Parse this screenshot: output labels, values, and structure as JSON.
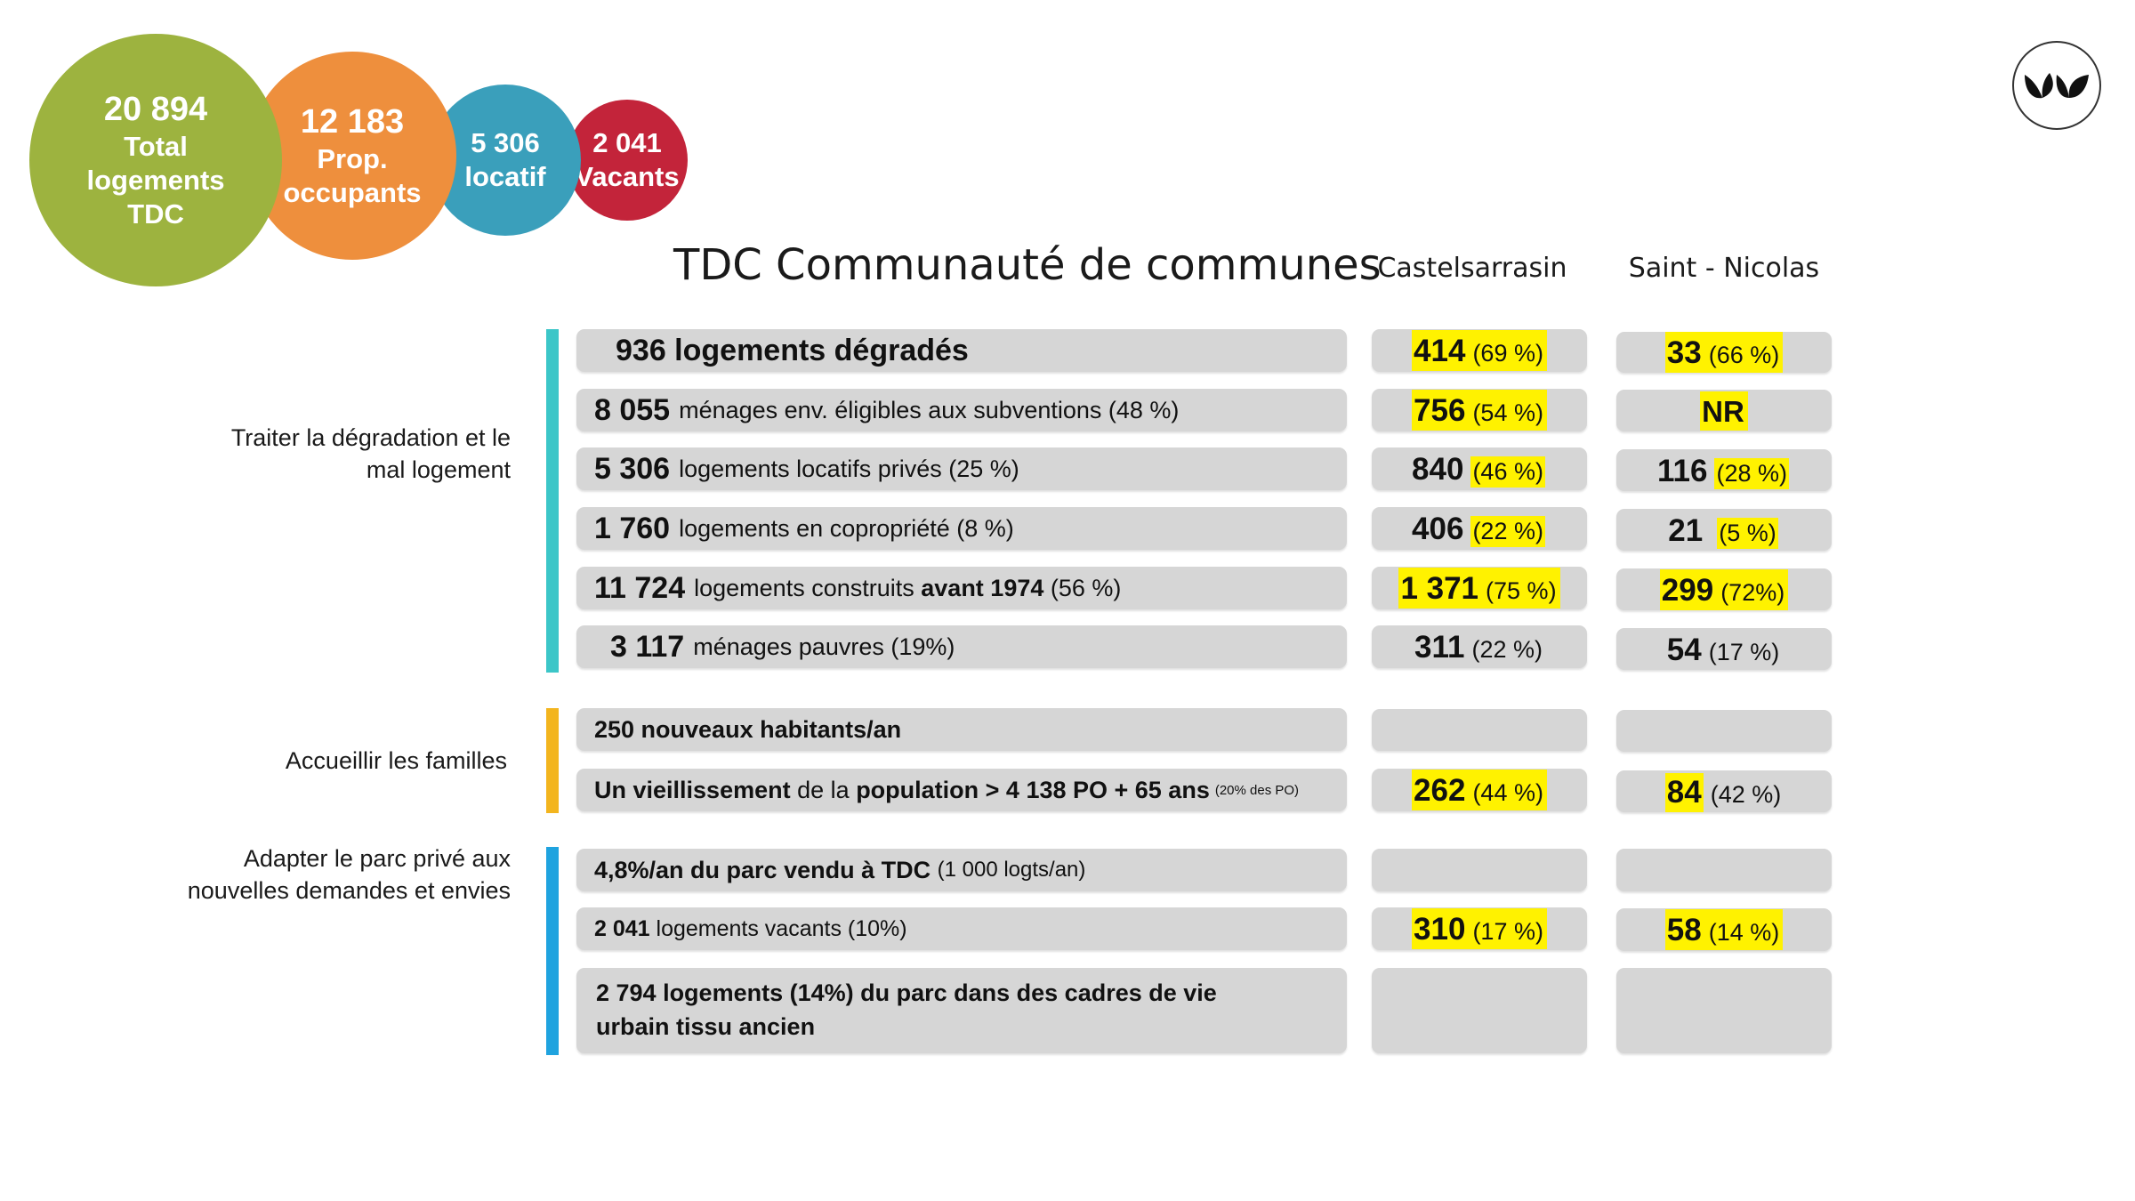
{
  "bubbles": [
    {
      "value": "20 894",
      "label_lines": [
        "Total",
        "logements",
        "TDC"
      ],
      "color": "#9db33f"
    },
    {
      "value": "12 183",
      "label_lines": [
        "Prop.",
        "occupants"
      ],
      "color": "#ee8f3d"
    },
    {
      "value": "5 306",
      "label_lines": [
        "locatif"
      ],
      "color": "#3a9fbb"
    },
    {
      "value": "2 041",
      "label_lines": [
        "Vacants"
      ],
      "color": "#c3243a"
    }
  ],
  "header": {
    "title": "TDC Communauté de communes",
    "col1": "Castelsarrasin",
    "col2": "Saint - Nicolas"
  },
  "sections": [
    {
      "label_lines": [
        "Traiter la dégradation et le",
        "mal logement"
      ],
      "bar_color": "#3cc6c8"
    },
    {
      "label_lines": [
        "Accueillir les familles"
      ],
      "bar_color": "#f3b51e"
    },
    {
      "label_lines": [
        "Adapter le parc privé aux",
        "nouvelles demandes et envies"
      ],
      "bar_color": "#1fa3df"
    }
  ],
  "rows": [
    {
      "main": {
        "big": "936 logements dégradés",
        "text": ""
      },
      "c1": {
        "v": "414",
        "p": "(69 %)"
      },
      "c2": {
        "v": "33",
        "p": "(66 %)"
      }
    },
    {
      "main": {
        "big": "8 055",
        "text": "ménages env. éligibles aux subventions (48 %)"
      },
      "c1": {
        "v": "756",
        "p": "(54 %)"
      },
      "c2": {
        "v": "NR",
        "p": ""
      }
    },
    {
      "main": {
        "big": "5 306",
        "text": "logements locatifs privés (25 %)"
      },
      "c1": {
        "v": "840",
        "p": "(46 %)"
      },
      "c2": {
        "v": "116",
        "p": "(28 %)"
      }
    },
    {
      "main": {
        "big": "1 760",
        "text": "logements en copropriété (8 %)"
      },
      "c1": {
        "v": "406",
        "p": "(22 %)"
      },
      "c2": {
        "v": "21",
        "p": "(5 %)"
      }
    },
    {
      "main": {
        "big": "11 724",
        "text_a": "logements construits",
        "bold": "avant 1974",
        "text_b": "(56 %)"
      },
      "c1": {
        "v": "1 371",
        "p": "(75 %)"
      },
      "c2": {
        "v": "299",
        "p": "(72%)"
      }
    },
    {
      "main": {
        "big": "3 117",
        "text": "ménages pauvres (19%)"
      },
      "c1": {
        "v": "311",
        "p": "(22 %)"
      },
      "c2": {
        "v": "54",
        "p": "(17 %)"
      }
    },
    {
      "main": {
        "bold": "250 nouveaux habitants/an"
      },
      "c1": {},
      "c2": {}
    },
    {
      "main": {
        "bold_a": "Un vieillissement",
        "text_a": "de la",
        "bold_b": "population > 4 138 PO + 65 ans",
        "tiny": "(20% des PO)"
      },
      "c1": {
        "v": "262",
        "p": "(44 %)"
      },
      "c2": {
        "v": "84",
        "p": "(42 %)"
      }
    },
    {
      "main": {
        "bold": "4,8%/an du parc vendu à TDC",
        "text": "(1 000 logts/an)"
      },
      "c1": {},
      "c2": {}
    },
    {
      "main": {
        "bold": "2 041",
        "text": "logements vacants (10%)"
      },
      "c1": {
        "v": "310",
        "p": "(17 %)"
      },
      "c2": {
        "v": "58",
        "p": "(14 %)"
      }
    },
    {
      "main": {
        "bold": "2 794 logements (14%) du parc dans des cadres de vie urbain tissu ancien"
      },
      "c1": {},
      "c2": {}
    }
  ],
  "highlight_color": "#fff200"
}
